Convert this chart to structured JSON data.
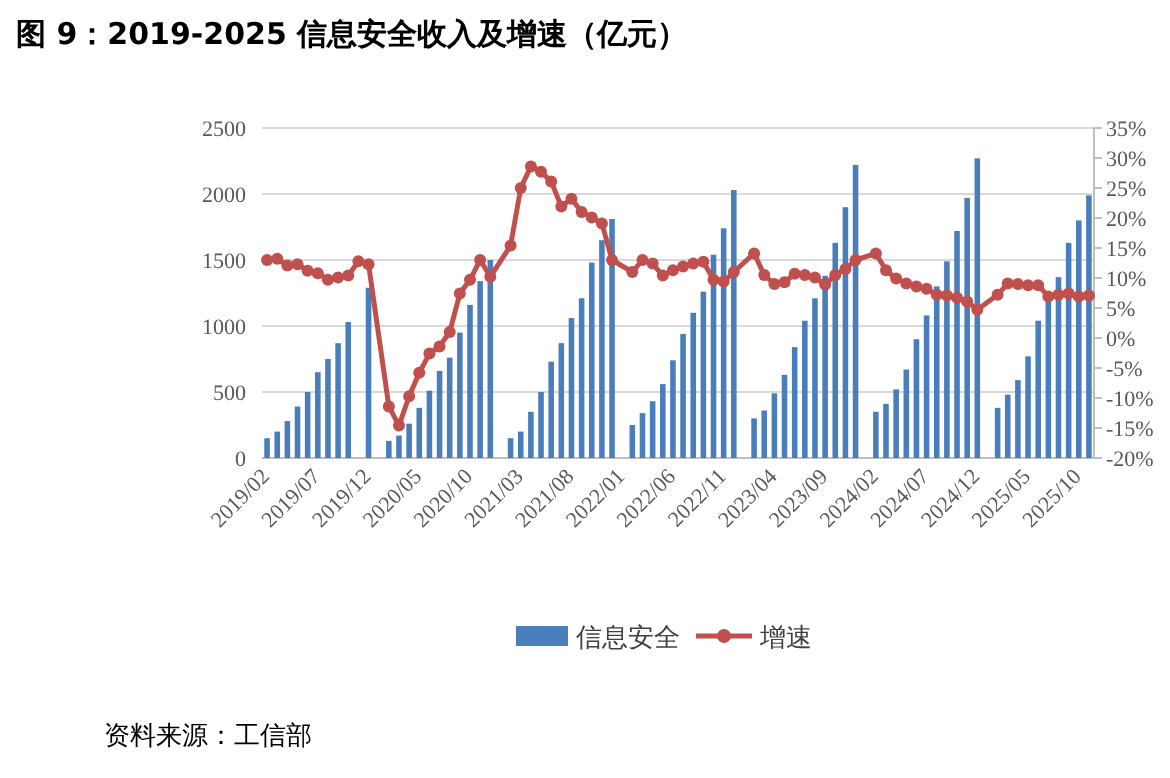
{
  "chart_data": {
    "type": "bar",
    "title": "图 9：2019-2025 信息安全收入及增速（亿元）",
    "categories": [
      "2019/02",
      null,
      null,
      null,
      null,
      "2019/07",
      null,
      null,
      null,
      null,
      "2019/12",
      null,
      null,
      null,
      null,
      "2020/05",
      null,
      null,
      null,
      null,
      "2020/10",
      null,
      null,
      null,
      null,
      "2021/03",
      null,
      null,
      null,
      null,
      "2021/08",
      null,
      null,
      null,
      null,
      "2022/01",
      null,
      null,
      null,
      null,
      "2022/06",
      null,
      null,
      null,
      null,
      "2022/11",
      null,
      null,
      null,
      null,
      "2023/04",
      null,
      null,
      null,
      null,
      "2023/09",
      null,
      null,
      null,
      null,
      "2024/02",
      null,
      null,
      null,
      null,
      "2024/07",
      null,
      null,
      null,
      null,
      "2024/12",
      null,
      null,
      null,
      null,
      "2025/05",
      null,
      null,
      null,
      null,
      "2025/10",
      null
    ],
    "series": [
      {
        "name": "信息安全",
        "color": "#4a7ebb",
        "values": [
          150,
          200,
          280,
          390,
          500,
          650,
          750,
          870,
          1030,
          null,
          1290,
          null,
          130,
          170,
          260,
          380,
          510,
          660,
          760,
          950,
          1160,
          1340,
          1500,
          null,
          150,
          200,
          350,
          500,
          730,
          870,
          1060,
          1210,
          1480,
          1650,
          1810,
          null,
          250,
          340,
          430,
          560,
          740,
          940,
          1100,
          1260,
          1540,
          1740,
          2030,
          null,
          300,
          360,
          490,
          630,
          840,
          1040,
          1210,
          1380,
          1630,
          1900,
          2220,
          null,
          350,
          410,
          520,
          670,
          900,
          1080,
          1300,
          1490,
          1720,
          1970,
          2270,
          null,
          380,
          480,
          590,
          770,
          1040,
          1220,
          1370,
          1630,
          1800,
          1990
        ]
      },
      {
        "name": "增速",
        "type": "line",
        "axis": "y2",
        "color": "#c0504d",
        "marker": "circle",
        "values": [
          13.0,
          13.2,
          12.1,
          12.3,
          11.2,
          10.8,
          9.7,
          10.1,
          10.4,
          12.8,
          12.3,
          null,
          -11.4,
          -14.6,
          -9.7,
          -5.8,
          -2.6,
          -1.4,
          1.0,
          7.4,
          9.7,
          13.0,
          10.2,
          null,
          15.4,
          25.0,
          28.6,
          27.7,
          26.1,
          21.9,
          23.2,
          21.0,
          20.1,
          19.1,
          13.0,
          null,
          11.0,
          13.0,
          12.4,
          10.4,
          11.3,
          11.9,
          12.4,
          12.7,
          9.7,
          9.4,
          11.0,
          null,
          14.1,
          10.5,
          9.0,
          9.3,
          10.7,
          10.5,
          10.1,
          8.9,
          10.5,
          11.5,
          13.0,
          null,
          14.1,
          11.3,
          9.9,
          9.1,
          8.6,
          8.2,
          7.2,
          7.1,
          6.7,
          6.1,
          4.7,
          null,
          7.2,
          9.1,
          9.0,
          8.8,
          8.8,
          6.9,
          7.2,
          7.4,
          6.9,
          7.1
        ]
      }
    ],
    "ylim": [
      0,
      2500
    ],
    "yticks": [
      0,
      500,
      1000,
      1500,
      2000,
      2500
    ],
    "y2lim": [
      -20,
      35
    ],
    "y2ticks": [
      {
        "value": -20,
        "label": "-20%"
      },
      {
        "value": -15,
        "label": "-15%"
      },
      {
        "value": -10,
        "label": "-10%"
      },
      {
        "value": -5,
        "label": "-5%"
      },
      {
        "value": 0,
        "label": "0%"
      },
      {
        "value": 5,
        "label": "5%"
      },
      {
        "value": 10,
        "label": "10%"
      },
      {
        "value": 15,
        "label": "15%"
      },
      {
        "value": 20,
        "label": "20%"
      },
      {
        "value": 25,
        "label": "25%"
      },
      {
        "value": 30,
        "label": "30%"
      },
      {
        "value": 35,
        "label": "35%"
      }
    ],
    "grid": "y",
    "legend": "bottom",
    "annotations": [
      "资料来源：工信部"
    ]
  }
}
